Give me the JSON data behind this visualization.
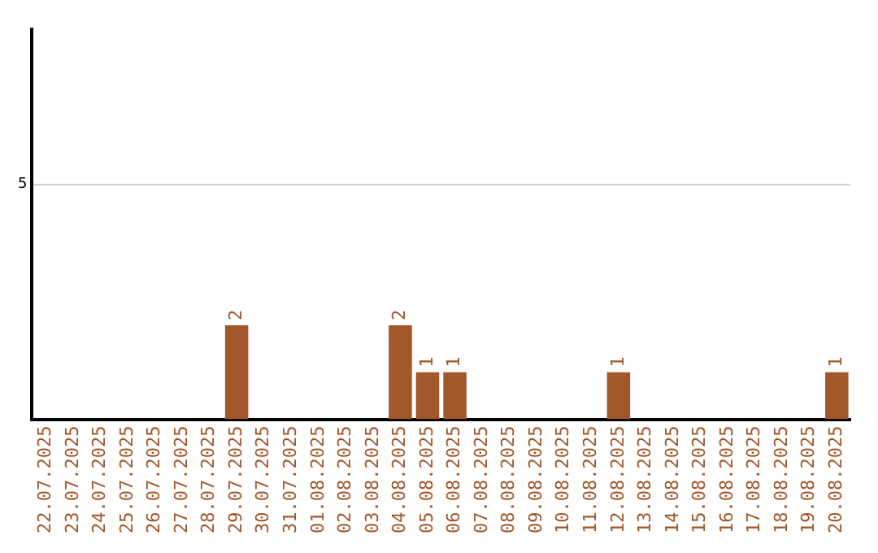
{
  "chart_data": {
    "type": "bar",
    "categories": [
      "22.07.2025",
      "23.07.2025",
      "24.07.2025",
      "25.07.2025",
      "26.07.2025",
      "27.07.2025",
      "28.07.2025",
      "29.07.2025",
      "30.07.2025",
      "31.07.2025",
      "01.08.2025",
      "02.08.2025",
      "03.08.2025",
      "04.08.2025",
      "05.08.2025",
      "06.08.2025",
      "07.08.2025",
      "08.08.2025",
      "09.08.2025",
      "10.08.2025",
      "11.08.2025",
      "12.08.2025",
      "13.08.2025",
      "14.08.2025",
      "15.08.2025",
      "16.08.2025",
      "17.08.2025",
      "18.08.2025",
      "19.08.2025",
      "20.08.2025"
    ],
    "values": [
      0,
      0,
      0,
      0,
      0,
      0,
      0,
      2,
      0,
      0,
      0,
      0,
      0,
      2,
      1,
      1,
      0,
      0,
      0,
      0,
      0,
      1,
      0,
      0,
      0,
      0,
      0,
      0,
      0,
      1
    ],
    "value_labels": [
      null,
      null,
      null,
      null,
      null,
      null,
      null,
      "2",
      null,
      null,
      null,
      null,
      null,
      "2",
      "1",
      "1",
      null,
      null,
      null,
      null,
      null,
      "1",
      null,
      null,
      null,
      null,
      null,
      null,
      null,
      "1"
    ],
    "color": "#a0572a",
    "ylim": [
      0,
      8.3
    ],
    "yticks": [
      5
    ],
    "grid": "y",
    "legend": false
  }
}
